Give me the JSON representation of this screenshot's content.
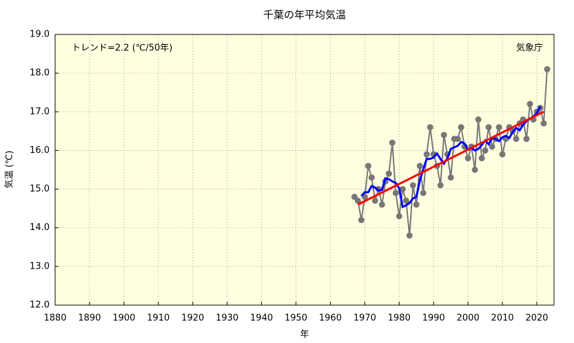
{
  "chart_data": {
    "type": "line",
    "title": "千葉の年平均気温",
    "xlabel": "年",
    "ylabel": "気温 (℃)",
    "annotations": [
      "トレンド=2.2 (℃/50年)",
      "気象庁"
    ],
    "x": [
      1967,
      1968,
      1969,
      1970,
      1971,
      1972,
      1973,
      1974,
      1975,
      1976,
      1977,
      1978,
      1979,
      1980,
      1981,
      1982,
      1983,
      1984,
      1985,
      1986,
      1987,
      1988,
      1989,
      1990,
      1991,
      1992,
      1993,
      1994,
      1995,
      1996,
      1997,
      1998,
      1999,
      2000,
      2001,
      2002,
      2003,
      2004,
      2005,
      2006,
      2007,
      2008,
      2009,
      2010,
      2011,
      2012,
      2013,
      2014,
      2015,
      2016,
      2017,
      2018,
      2019,
      2020,
      2021,
      2022,
      2023
    ],
    "series": [
      {
        "color": "#777777",
        "markers": true,
        "values": [
          14.8,
          14.7,
          14.2,
          14.8,
          15.6,
          15.3,
          14.7,
          15.0,
          14.6,
          15.2,
          15.4,
          16.2,
          14.9,
          14.3,
          15.0,
          14.7,
          13.8,
          15.1,
          14.6,
          15.6,
          14.9,
          15.9,
          16.6,
          15.9,
          15.6,
          15.1,
          16.4,
          15.9,
          15.3,
          16.3,
          16.3,
          16.6,
          16.1,
          15.8,
          16.1,
          15.5,
          16.8,
          15.8,
          16.0,
          16.6,
          16.1,
          16.3,
          16.6,
          15.9,
          16.3,
          16.6,
          16.5,
          16.3,
          16.7,
          16.8,
          16.3,
          17.2,
          16.8,
          17.0,
          17.1,
          16.7,
          18.1
        ]
      },
      {
        "color": "#0000ff",
        "markers": false,
        "values": [
          null,
          null,
          14.82,
          14.92,
          14.92,
          15.08,
          15.04,
          14.96,
          14.98,
          15.28,
          15.26,
          15.2,
          15.16,
          15.02,
          14.54,
          14.58,
          14.64,
          14.76,
          14.8,
          15.22,
          15.52,
          15.78,
          15.78,
          15.82,
          15.92,
          15.78,
          15.66,
          15.8,
          16.04,
          16.08,
          16.12,
          16.22,
          16.18,
          16.02,
          16.06,
          16.0,
          16.04,
          16.14,
          16.26,
          16.16,
          16.32,
          16.3,
          16.24,
          16.34,
          16.38,
          16.32,
          16.48,
          16.58,
          16.52,
          16.66,
          16.76,
          16.82,
          16.88,
          16.96,
          17.14,
          null,
          null
        ]
      },
      {
        "color": "#ff0000",
        "markers": false,
        "x": [
          1968,
          2022
        ],
        "values": [
          14.6,
          17.0
        ]
      }
    ],
    "xlim": [
      1880,
      2025
    ],
    "ylim": [
      12.0,
      19.0
    ],
    "xticks": [
      1880,
      1890,
      1900,
      1910,
      1920,
      1930,
      1940,
      1950,
      1960,
      1970,
      1980,
      1990,
      2000,
      2010,
      2020
    ],
    "yticks": [
      {
        "value": 12,
        "label": "12.0"
      },
      {
        "value": 13,
        "label": "13.0"
      },
      {
        "value": 14,
        "label": "14.0"
      },
      {
        "value": 15,
        "label": "15.0"
      },
      {
        "value": 16,
        "label": "16.0"
      },
      {
        "value": 17,
        "label": "17.0"
      },
      {
        "value": 18,
        "label": "18.0"
      },
      {
        "value": 19,
        "label": "19.0"
      }
    ],
    "grid": true,
    "background": "#ffffe0"
  }
}
